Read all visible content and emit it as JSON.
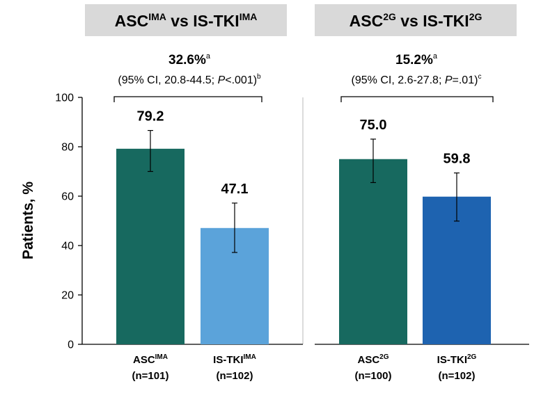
{
  "chart_data": {
    "type": "bar",
    "ylabel": "Patients, %",
    "ylim": [
      0,
      100
    ],
    "yticks": [
      0,
      20,
      40,
      60,
      80,
      100
    ],
    "grid": false,
    "legend": "none",
    "panels": [
      {
        "header": {
          "base1": "ASC",
          "sup1": "IMA",
          "mid": " vs IS-TKI",
          "sup2": "IMA"
        },
        "difference": {
          "value": "32.6%",
          "value_sup": "a",
          "ci_pre": "(95% CI, 20.8-44.5; ",
          "p_italic": "P",
          "ci_post": "<.001)",
          "ci_sup": "b"
        },
        "bars": [
          {
            "label_base": "ASC",
            "label_sup": "IMA",
            "n": "(n=101)",
            "value": 79.2,
            "value_label": "79.2",
            "error_low": 70.0,
            "error_high": 86.6,
            "color": "#17695F"
          },
          {
            "label_base": "IS-TKI",
            "label_sup": "IMA",
            "n": "(n=102)",
            "value": 47.1,
            "value_label": "47.1",
            "error_low": 37.2,
            "error_high": 57.2,
            "color": "#5BA3DA"
          }
        ]
      },
      {
        "header": {
          "base1": "ASC",
          "sup1": "2G",
          "mid": " vs IS-TKI",
          "sup2": "2G"
        },
        "difference": {
          "value": "15.2%",
          "value_sup": "a",
          "ci_pre": "(95% CI, 2.6-27.8; ",
          "p_italic": "P",
          "ci_post": "=.01)",
          "ci_sup": "c"
        },
        "bars": [
          {
            "label_base": "ASC",
            "label_sup": "2G",
            "n": "(n=100)",
            "value": 75.0,
            "value_label": "75.0",
            "error_low": 65.5,
            "error_high": 83.1,
            "color": "#17695F"
          },
          {
            "label_base": "IS-TKI",
            "label_sup": "2G",
            "n": "(n=102)",
            "value": 59.8,
            "value_label": "59.8",
            "error_low": 49.9,
            "error_high": 69.4,
            "color": "#1E63B0"
          }
        ]
      }
    ]
  }
}
